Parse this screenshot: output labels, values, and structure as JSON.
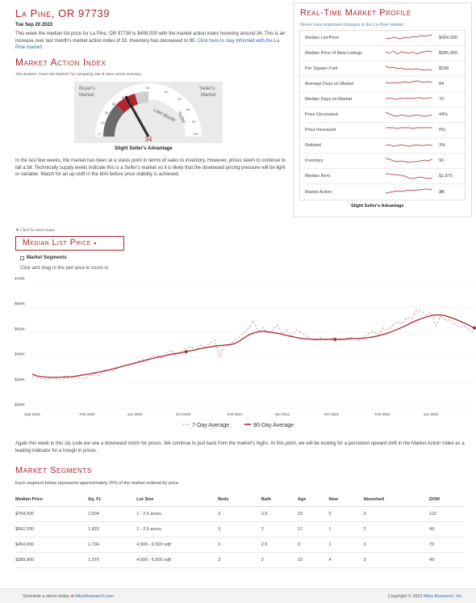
{
  "header": {
    "title": "La Pine, OR 97739",
    "date": "Tue Sep 20 2022",
    "intro_text": "This week the median list price for La Pine, OR 97739 is $499,000 with the market action index hovering around 34. This is an increase over last month's market action index of 33. Inventory has decreased to 90.",
    "intro_link": "Click here to stay informed with the La Pine market!"
  },
  "mai": {
    "title": "Market Action Index",
    "subtitle": "This answers \"How's the Market?\" by comparing rate of sales versus inventory.",
    "buyers_label_1": "Buyer's",
    "buyers_label_2": "Market",
    "sellers_label_1": "Seller's",
    "sellers_label_2": "Market",
    "last_month": "Last Month",
    "today": "Today",
    "value": "34",
    "ticks": [
      "0",
      "10",
      "20",
      "30",
      "40",
      "50",
      "60",
      "70",
      "80",
      "90",
      "100"
    ],
    "label": "Slight Seller's Advantage",
    "description": "In the last few weeks, the market has been at a stasis point in terms of sales to inventory. However, prices seem to continue to fall a bit. Technically supply levels indicate this is a Seller's market so it is likely that the downward pricing pressure will be light or variable. Watch for an up-shift in the MAI before price stability is achieved."
  },
  "profile": {
    "title": "Real-Time Market Profile",
    "subtitle": "Never miss important changes in the La Pine market.",
    "rows": [
      {
        "label": "Median List Price",
        "value": "$499,000"
      },
      {
        "label": "Median Price of New Listings",
        "value": "$386,450"
      },
      {
        "label": "Per Square Foot",
        "value": "$288"
      },
      {
        "label": "Average Days on Market",
        "value": "84"
      },
      {
        "label": "Median Days on Market",
        "value": "70"
      },
      {
        "label": "Price Decreased",
        "value": "44%"
      },
      {
        "label": "Price Increased",
        "value": "0%"
      },
      {
        "label": "Relisted",
        "value": "3%"
      },
      {
        "label": "Inventory",
        "value": "90"
      },
      {
        "label": "Median Rent",
        "value": "$1,875"
      },
      {
        "label": "Market Action",
        "value": "34"
      }
    ],
    "footer": "Slight Seller's Advantage"
  },
  "controls": {
    "click_more": "▼ Click for more charts",
    "chart_select": "Median List Price",
    "segments_toggle": "Market Segments",
    "zoom_hint": "Click and drag in the plot area to zoom in."
  },
  "chart_data": {
    "type": "line",
    "xlabel": "",
    "ylabel": "",
    "ylim": [
      200000,
      700000
    ],
    "y_ticks": [
      "$700K",
      "$600K",
      "$500K",
      "$400K",
      "$300K",
      "$200K"
    ],
    "x_ticks": [
      "Sep 2019",
      "Feb 2020",
      "Jun 2020",
      "Oct 2020",
      "Feb 2021",
      "Jun 2021",
      "Oct 2021",
      "Feb 2022",
      "Jun 2022"
    ],
    "legend_placement": "bottom",
    "series": [
      {
        "name": "7-Day Average",
        "style": "dashed",
        "color": "#d9a2a6",
        "values": [
          325000,
          320000,
          318000,
          312000,
          322000,
          316000,
          312000,
          320000,
          318000,
          326000,
          322000,
          318000,
          328000,
          335000,
          330000,
          345000,
          352000,
          348000,
          362000,
          368000,
          372000,
          378000,
          385000,
          392000,
          395000,
          405000,
          412000,
          398000,
          420000,
          430000,
          408000,
          425000,
          438000,
          445000,
          430000,
          450000,
          442000,
          458000,
          470000,
          405000,
          452000,
          445000,
          470000,
          480000,
          500000,
          515000,
          548000,
          505000,
          520000,
          500000,
          508000,
          530000,
          495000,
          510000,
          485000,
          512000,
          498000,
          488000,
          472000,
          468000,
          480000,
          470000,
          475000,
          478000,
          470000,
          472000,
          482000,
          478000,
          468000,
          485000,
          495000,
          505000,
          490000,
          518000,
          510000,
          528000,
          540000,
          535000,
          560000,
          555000,
          590000,
          585000,
          570000,
          580000,
          525000,
          565000,
          548000,
          550000,
          532000,
          520000,
          525000,
          510000,
          500000
        ]
      },
      {
        "name": "90-Day Average",
        "style": "solid",
        "color": "#a8262e",
        "values": [
          335000,
          328000,
          325000,
          323000,
          322000,
          322000,
          323000,
          324000,
          325000,
          327000,
          330000,
          333000,
          336000,
          340000,
          344000,
          348000,
          352000,
          357000,
          362000,
          367000,
          372000,
          377000,
          382000,
          387000,
          392000,
          397000,
          402000,
          406000,
          410000,
          414000,
          417000,
          420000,
          424000,
          428000,
          432000,
          436000,
          440000,
          443000,
          446000,
          448000,
          450000,
          452000,
          455000,
          465000,
          478000,
          490000,
          498000,
          503000,
          505000,
          503000,
          500000,
          497000,
          493000,
          488000,
          484000,
          480000,
          477000,
          475000,
          474000,
          473000,
          473000,
          473000,
          473000,
          473000,
          473000,
          474000,
          475000,
          476000,
          477000,
          478000,
          480000,
          483000,
          487000,
          492000,
          498000,
          505000,
          513000,
          521000,
          530000,
          540000,
          548000,
          555000,
          562000,
          567000,
          570000,
          570000,
          566000,
          560000,
          553000,
          545000,
          537000,
          528000,
          518000
        ]
      }
    ]
  },
  "chart_desc": "Again this week in this zip code we see a downward notch for prices. We continue to pull back from the market's highs. At this point, we will be looking for a persistent upward shift in the Market Action Index as a leading indicator for a trough in prices.",
  "segments": {
    "title": "Market Segments",
    "subtitle": "Each segment below represents approximately 25% of the market ordered by price.",
    "columns": [
      "Median Price",
      "Sq. Ft.",
      "Lot Size",
      "Beds",
      "Bath",
      "Age",
      "New",
      "Absorbed",
      "DOM"
    ],
    "rows": [
      [
        "$754,500",
        "2,504",
        "1 - 2.5 acres",
        "3",
        "2.5",
        "23",
        "0",
        "3",
        "122"
      ],
      [
        "$562,200",
        "1,822",
        "1 - 2.5 acres",
        "3",
        "2",
        "17",
        "1",
        "2",
        "49"
      ],
      [
        "$454,000",
        "1,704",
        "4,500 - 6,500 sqft",
        "3",
        "2.5",
        "0",
        "1",
        "3",
        "70"
      ],
      [
        "$389,900",
        "1,370",
        "4,500 - 6,500 sqft",
        "3",
        "2",
        "10",
        "4",
        "3",
        "49"
      ]
    ]
  },
  "footer": {
    "left_text": "Schedule a demo today at ",
    "left_link": "AltosResearch.com",
    "right_text": "Copyright © 2022 ",
    "right_link": "Altos Research, Inc."
  }
}
